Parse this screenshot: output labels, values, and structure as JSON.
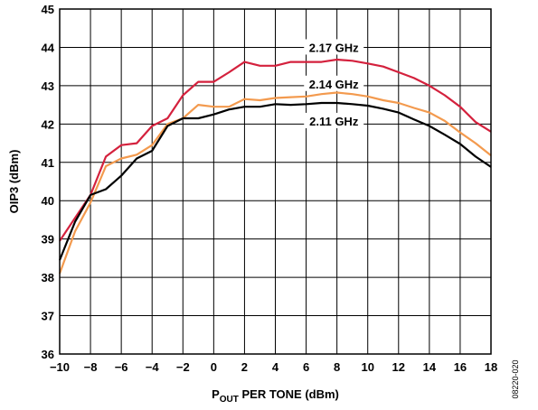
{
  "chart_data": {
    "type": "line",
    "xlabel": "P",
    "xlabel_sub": "OUT",
    "xlabel_rest": " PER TONE (dBm)",
    "ylabel": "OIP3 (dBm)",
    "xlim": [
      -10,
      18
    ],
    "ylim": [
      36,
      45
    ],
    "xticks": [
      -10,
      -8,
      -6,
      -4,
      -2,
      0,
      2,
      4,
      6,
      8,
      10,
      12,
      14,
      16,
      18
    ],
    "xtick_labels": [
      "−10",
      "−8",
      "−6",
      "−4",
      "−2",
      "0",
      "2",
      "4",
      "6",
      "8",
      "10",
      "12",
      "14",
      "16",
      "18"
    ],
    "yticks": [
      36,
      37,
      38,
      39,
      40,
      41,
      42,
      43,
      44,
      45
    ],
    "grid": true,
    "figure_id": "08220-020",
    "series": [
      {
        "name": "2.17 GHz",
        "color": "#d4213d",
        "x": [
          -10,
          -9,
          -8,
          -7,
          -6,
          -5,
          -4,
          -3,
          -2,
          -1,
          0,
          1,
          2,
          3,
          4,
          5,
          6,
          7,
          8,
          9,
          10,
          11,
          12,
          13,
          14,
          15,
          16,
          17,
          18
        ],
        "y": [
          38.95,
          39.55,
          40.15,
          41.15,
          41.45,
          41.5,
          41.95,
          42.15,
          42.75,
          43.1,
          43.1,
          43.35,
          43.62,
          43.52,
          43.52,
          43.62,
          43.62,
          43.62,
          43.68,
          43.65,
          43.58,
          43.5,
          43.35,
          43.2,
          43.0,
          42.75,
          42.45,
          42.05,
          41.8
        ]
      },
      {
        "name": "2.14 GHz",
        "color": "#f39a4e",
        "x": [
          -10,
          -9,
          -8,
          -7,
          -6,
          -5,
          -4,
          -3,
          -2,
          -1,
          0,
          1,
          2,
          3,
          4,
          5,
          6,
          7,
          8,
          9,
          10,
          11,
          12,
          13,
          14,
          15,
          16,
          17,
          18
        ],
        "y": [
          38.1,
          39.2,
          39.95,
          40.9,
          41.1,
          41.2,
          41.45,
          42.0,
          42.15,
          42.5,
          42.45,
          42.45,
          42.65,
          42.62,
          42.68,
          42.7,
          42.72,
          42.78,
          42.82,
          42.78,
          42.72,
          42.62,
          42.55,
          42.42,
          42.3,
          42.08,
          41.78,
          41.5,
          41.18
        ]
      },
      {
        "name": "2.11 GHz",
        "color": "#000000",
        "x": [
          -10,
          -9,
          -8,
          -7,
          -6,
          -5,
          -4,
          -3,
          -2,
          -1,
          0,
          1,
          2,
          3,
          4,
          5,
          6,
          7,
          8,
          9,
          10,
          11,
          12,
          13,
          14,
          15,
          16,
          17,
          18
        ],
        "y": [
          38.45,
          39.45,
          40.15,
          40.3,
          40.65,
          41.1,
          41.3,
          41.95,
          42.15,
          42.15,
          42.25,
          42.38,
          42.45,
          42.45,
          42.52,
          42.5,
          42.52,
          42.55,
          42.55,
          42.52,
          42.48,
          42.4,
          42.3,
          42.12,
          41.95,
          41.72,
          41.48,
          41.15,
          40.88
        ]
      }
    ],
    "annotations": [
      {
        "text": "2.17 GHz",
        "x": 7.8,
        "y": 44.0
      },
      {
        "text": "2.14 GHz",
        "x": 7.8,
        "y": 43.05
      },
      {
        "text": "2.11 GHz",
        "x": 7.8,
        "y": 42.08
      }
    ]
  }
}
